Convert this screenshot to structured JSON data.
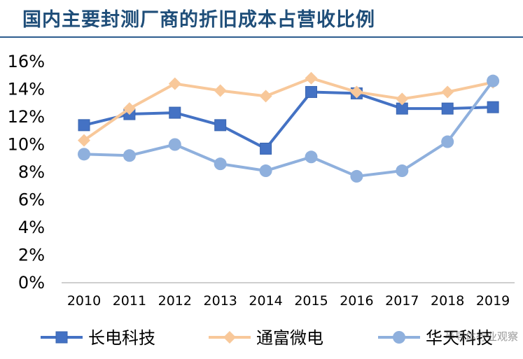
{
  "title": "国内主要封测厂商的折旧成本占营收比例",
  "watermark": "半导体行业观察",
  "chart_data": {
    "type": "line",
    "title": "国内主要封测厂商的折旧成本占营收比例",
    "xlabel": "",
    "ylabel": "",
    "categories": [
      "2010",
      "2011",
      "2012",
      "2013",
      "2014",
      "2015",
      "2016",
      "2017",
      "2018",
      "2019"
    ],
    "y_ticks": [
      "0%",
      "2%",
      "4%",
      "6%",
      "8%",
      "10%",
      "12%",
      "14%",
      "16%"
    ],
    "ylim": [
      0,
      16
    ],
    "y_unit": "%",
    "grid": false,
    "legend_position": "bottom",
    "series": [
      {
        "name": "长电科技",
        "color": "#4472c4",
        "marker": "square",
        "values": [
          11.4,
          12.2,
          12.3,
          11.4,
          9.7,
          13.8,
          13.7,
          12.6,
          12.6,
          12.7
        ]
      },
      {
        "name": "通富微电",
        "color": "#f8c89a",
        "marker": "diamond",
        "values": [
          10.3,
          12.6,
          14.4,
          13.9,
          13.5,
          14.8,
          13.8,
          13.3,
          13.8,
          14.5
        ]
      },
      {
        "name": "华天科技",
        "color": "#8fb0dd",
        "marker": "circle",
        "values": [
          9.3,
          9.2,
          10.0,
          8.6,
          8.1,
          9.1,
          7.7,
          8.1,
          10.2,
          14.6
        ]
      }
    ]
  }
}
